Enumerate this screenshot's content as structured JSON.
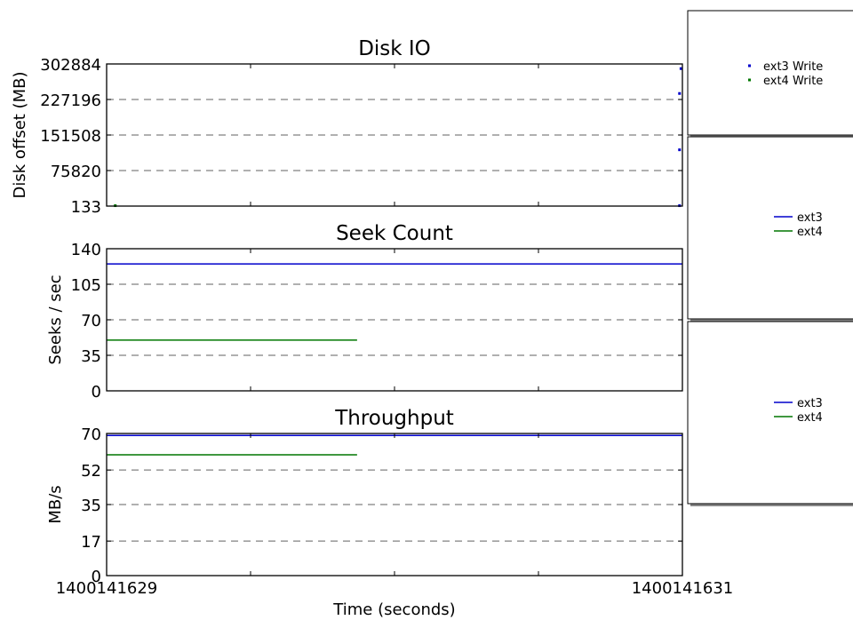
{
  "xlabel": "Time (seconds)",
  "x_ticks": [
    "1400141629",
    "1400141631"
  ],
  "colors": {
    "ext3": "#0000cc",
    "ext4": "#007700"
  },
  "chart_data": [
    {
      "type": "scatter",
      "title": "Disk IO",
      "ylabel": "Disk offset (MB)",
      "xlim": [
        1400141629,
        1400141631
      ],
      "ylim": [
        133,
        302884
      ],
      "yticks": [
        133,
        75820,
        151508,
        227196,
        302884
      ],
      "ytick_labels": [
        "133",
        "75820",
        "151508",
        "227196",
        "302884"
      ],
      "grid": true,
      "legend_position": "right",
      "series": [
        {
          "name": "ext3 Write",
          "color": "#0000cc",
          "points": [
            {
              "x": 1400141630.995,
              "y": 293000
            },
            {
              "x": 1400141630.99,
              "y": 240000
            },
            {
              "x": 1400141630.99,
              "y": 120000
            },
            {
              "x": 1400141630.99,
              "y": 1000
            }
          ]
        },
        {
          "name": "ext4 Write",
          "color": "#007700",
          "points": [
            {
              "x": 1400141629.03,
              "y": 1000
            }
          ]
        }
      ]
    },
    {
      "type": "line",
      "title": "Seek Count",
      "ylabel": "Seeks / sec",
      "xlim": [
        1400141629,
        1400141631
      ],
      "ylim": [
        0,
        140
      ],
      "yticks": [
        0,
        35,
        70,
        105,
        140
      ],
      "ytick_labels": [
        "0",
        "35",
        "70",
        "105",
        "140"
      ],
      "grid": true,
      "legend_position": "right",
      "series": [
        {
          "name": "ext3",
          "color": "#0000cc",
          "x": [
            1400141629,
            1400141631
          ],
          "y": [
            125,
            125
          ]
        },
        {
          "name": "ext4",
          "color": "#007700",
          "x": [
            1400141629,
            1400141629.87
          ],
          "y": [
            50,
            50
          ]
        }
      ]
    },
    {
      "type": "line",
      "title": "Throughput",
      "ylabel": "MB/s",
      "xlim": [
        1400141629,
        1400141631
      ],
      "ylim": [
        0,
        70
      ],
      "yticks": [
        0,
        17,
        35,
        52,
        70
      ],
      "ytick_labels": [
        "0",
        "17",
        "35",
        "52",
        "70"
      ],
      "grid": true,
      "legend_position": "right",
      "series": [
        {
          "name": "ext3",
          "color": "#0000cc",
          "x": [
            1400141629,
            1400141631
          ],
          "y": [
            69,
            69
          ]
        },
        {
          "name": "ext4",
          "color": "#007700",
          "x": [
            1400141629,
            1400141629.87
          ],
          "y": [
            59.5,
            59.5
          ]
        }
      ]
    }
  ]
}
